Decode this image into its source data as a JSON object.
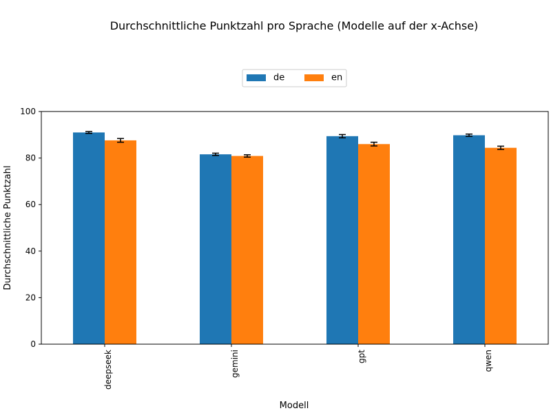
{
  "chart_data": {
    "type": "bar",
    "title": "Durchschnittliche Punktzahl pro Sprache (Modelle auf der x-Achse)",
    "xlabel": "Modell",
    "ylabel": "Durchschnittliche Punktzahl",
    "categories": [
      "deepseek",
      "gemini",
      "gpt",
      "qwen"
    ],
    "series": [
      {
        "name": "de",
        "color": "#1f77b4",
        "values": [
          91.0,
          81.6,
          89.4,
          89.8
        ],
        "errors": [
          0.4,
          0.5,
          0.7,
          0.5
        ]
      },
      {
        "name": "en",
        "color": "#ff7f0e",
        "values": [
          87.6,
          80.9,
          86.0,
          84.4
        ],
        "errors": [
          0.8,
          0.5,
          0.8,
          0.7
        ]
      }
    ],
    "ylim": [
      0,
      100
    ],
    "yticks": [
      0,
      20,
      40,
      60,
      80,
      100
    ],
    "grid": false,
    "legend_placement": "top-center"
  }
}
